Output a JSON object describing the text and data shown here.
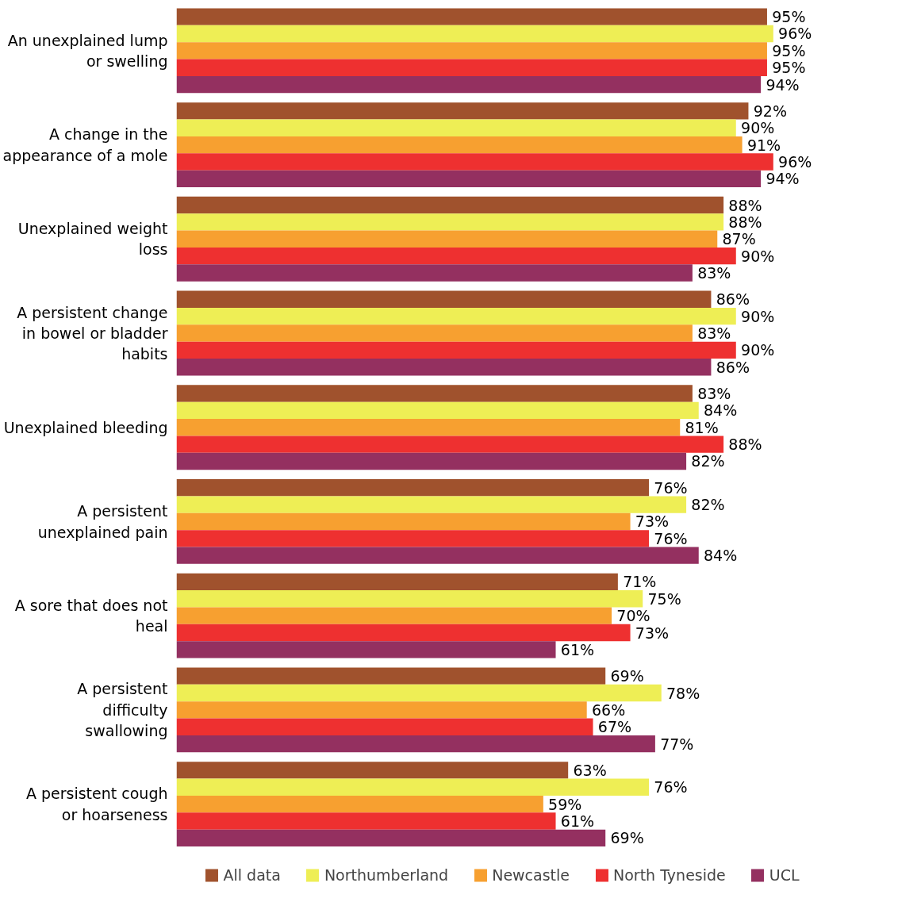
{
  "chart_data": {
    "type": "bar",
    "orientation": "horizontal",
    "categories": [
      "An unexplained lump or swelling",
      "A change in the appearance of a mole",
      "Unexplained weight loss",
      "A persistent change in bowel or bladder habits",
      "Unexplained bleeding",
      "A persistent unexplained pain",
      "A sore that does not heal",
      "A persistent difficulty swallowing",
      "A persistent cough or hoarseness"
    ],
    "series": [
      {
        "name": "All data",
        "color": "#a0522d",
        "values": [
          95,
          92,
          88,
          86,
          83,
          76,
          71,
          69,
          63
        ],
        "value_labels": [
          "95%",
          "92%",
          "88%",
          "86%",
          "83%",
          "76%",
          "71%",
          "69%",
          "63%"
        ]
      },
      {
        "name": "Northumberland",
        "color": "#eeee55",
        "values": [
          96,
          90,
          88,
          90,
          84,
          82,
          75,
          78,
          76
        ],
        "value_labels": [
          "96%",
          "90%",
          "88%",
          "90%",
          "84%",
          "82%",
          "75%",
          "78%",
          "76%"
        ]
      },
      {
        "name": "Newcastle",
        "color": "#f7a030",
        "values": [
          95,
          91,
          87,
          83,
          81,
          73,
          70,
          66,
          59
        ],
        "value_labels": [
          "95%",
          "91%",
          "87%",
          "83%",
          "81%",
          "73%",
          "70%",
          "66%",
          "59%"
        ]
      },
      {
        "name": "North Tyneside",
        "color": "#ee3030",
        "values": [
          95,
          96,
          90,
          90,
          88,
          76,
          73,
          67,
          61
        ],
        "value_labels": [
          "95%",
          "96%",
          "90%",
          "90%",
          "88%",
          "76%",
          "73%",
          "67%",
          "61%"
        ]
      },
      {
        "name": "UCL",
        "color": "#943060",
        "values": [
          94,
          94,
          83,
          86,
          82,
          84,
          61,
          77,
          69
        ],
        "value_labels": [
          "94%",
          "94%",
          "83%",
          "86%",
          "82%",
          "84%",
          "61%",
          "77%",
          "69%"
        ]
      }
    ],
    "tick_labels": "y",
    "grid": false,
    "legend": "bottom"
  }
}
